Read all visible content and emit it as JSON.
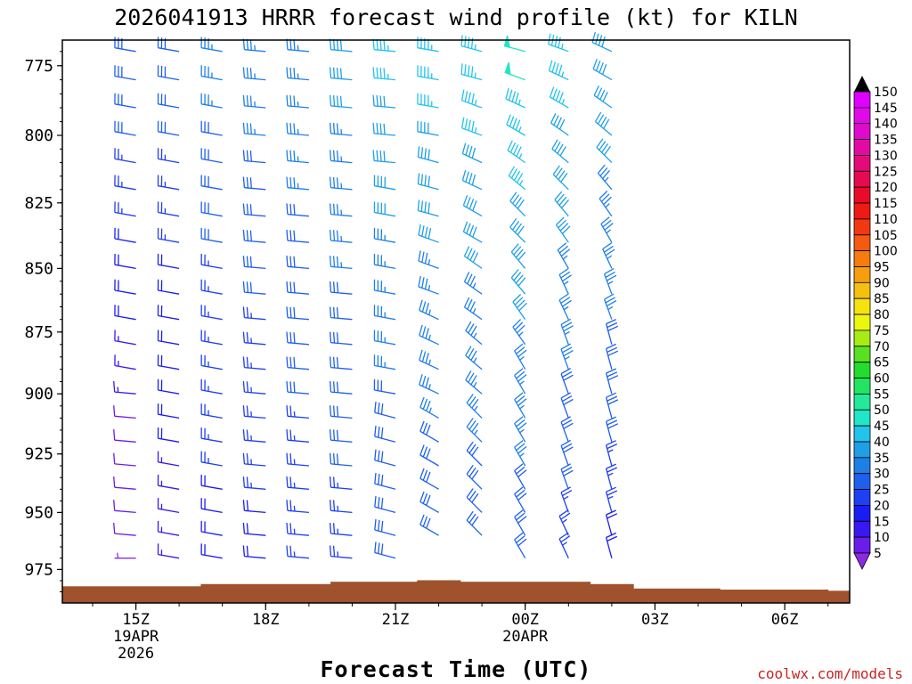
{
  "chart_data": {
    "type": "wind-barb-time-height",
    "title": "2026041913 HRRR forecast wind profile (kt) for KILN",
    "xlabel": "Forecast Time (UTC)",
    "ylabel": "",
    "credit": "coolwx.com/models",
    "y_axis": {
      "unit": "hPa",
      "ylim": [
        990,
        766
      ],
      "ticks": [
        775,
        800,
        825,
        850,
        875,
        900,
        925,
        950,
        975
      ]
    },
    "x_axis": {
      "xlim_hours": [
        13.3,
        31.5
      ],
      "ticks": [
        {
          "hour": 15,
          "label": "15Z",
          "sub1": "19APR",
          "sub2": "2026"
        },
        {
          "hour": 18,
          "label": "18Z",
          "sub1": "",
          "sub2": ""
        },
        {
          "hour": 21,
          "label": "21Z",
          "sub1": "",
          "sub2": ""
        },
        {
          "hour": 24,
          "label": "00Z",
          "sub1": "20APR",
          "sub2": ""
        },
        {
          "hour": 27,
          "label": "03Z",
          "sub1": "",
          "sub2": ""
        },
        {
          "hour": 30,
          "label": "06Z",
          "sub1": "",
          "sub2": ""
        }
      ]
    },
    "terrain": {
      "color": "#a0522d",
      "surface_pressure": [
        {
          "from": 13.3,
          "to": 16.5,
          "p": 982.5
        },
        {
          "from": 16.5,
          "to": 19.5,
          "p": 981.5
        },
        {
          "from": 19.5,
          "to": 21.5,
          "p": 980.5
        },
        {
          "from": 21.5,
          "to": 22.5,
          "p": 979.8
        },
        {
          "from": 22.5,
          "to": 25.5,
          "p": 980.5
        },
        {
          "from": 25.5,
          "to": 26.5,
          "p": 981.5
        },
        {
          "from": 26.5,
          "to": 28.5,
          "p": 983.5
        },
        {
          "from": 28.5,
          "to": 31.0,
          "p": 984.0
        },
        {
          "from": 31.0,
          "to": 31.5,
          "p": 984.5
        }
      ]
    },
    "barb_levels": [
      770,
      780,
      790,
      800,
      810,
      820,
      830,
      840,
      850,
      860,
      870,
      880,
      890,
      900,
      910,
      920,
      930,
      940,
      950,
      960,
      970
    ],
    "series": [
      {
        "hour": 15,
        "lowest_p": 972,
        "dir": [
          280,
          280,
          280,
          280,
          280,
          280,
          280,
          280,
          280,
          280,
          280,
          280,
          280,
          275,
          275,
          275,
          275,
          275,
          275,
          275,
          270
        ],
        "spd": [
          30,
          30,
          30,
          30,
          25,
          25,
          25,
          20,
          20,
          20,
          20,
          15,
          15,
          15,
          10,
          10,
          10,
          10,
          10,
          10,
          5
        ]
      },
      {
        "hour": 16,
        "lowest_p": 971,
        "dir": [
          280,
          280,
          280,
          280,
          280,
          280,
          280,
          280,
          280,
          280,
          280,
          280,
          280,
          280,
          280,
          280,
          280,
          280,
          280,
          280,
          280
        ],
        "spd": [
          30,
          30,
          30,
          30,
          25,
          25,
          25,
          25,
          20,
          20,
          20,
          20,
          20,
          20,
          20,
          20,
          15,
          15,
          15,
          15,
          15
        ]
      },
      {
        "hour": 17,
        "lowest_p": 971,
        "dir": [
          280,
          280,
          280,
          280,
          280,
          280,
          280,
          280,
          280,
          280,
          280,
          280,
          280,
          280,
          280,
          280,
          280,
          280,
          280,
          280,
          280
        ],
        "spd": [
          35,
          35,
          35,
          30,
          30,
          30,
          30,
          30,
          25,
          25,
          25,
          25,
          25,
          25,
          25,
          25,
          25,
          20,
          20,
          20,
          20
        ]
      },
      {
        "hour": 18,
        "lowest_p": 970,
        "dir": [
          275,
          275,
          275,
          275,
          275,
          275,
          275,
          275,
          275,
          275,
          275,
          275,
          275,
          275,
          275,
          275,
          275,
          275,
          275,
          275,
          275
        ],
        "spd": [
          35,
          35,
          35,
          35,
          30,
          30,
          30,
          30,
          30,
          30,
          25,
          25,
          25,
          25,
          25,
          25,
          25,
          25,
          20,
          20,
          20
        ]
      },
      {
        "hour": 19,
        "lowest_p": 970,
        "dir": [
          275,
          275,
          275,
          275,
          275,
          275,
          275,
          275,
          275,
          275,
          275,
          275,
          275,
          275,
          275,
          275,
          275,
          275,
          275,
          275,
          275
        ],
        "spd": [
          35,
          35,
          35,
          35,
          35,
          35,
          30,
          30,
          30,
          30,
          30,
          30,
          30,
          30,
          25,
          25,
          25,
          25,
          25,
          25,
          25
        ]
      },
      {
        "hour": 20,
        "lowest_p": 970,
        "dir": [
          275,
          275,
          275,
          275,
          275,
          275,
          275,
          275,
          275,
          275,
          275,
          275,
          275,
          275,
          275,
          275,
          275,
          275,
          275,
          275,
          275
        ],
        "spd": [
          40,
          40,
          40,
          35,
          35,
          35,
          35,
          35,
          35,
          30,
          30,
          30,
          30,
          30,
          30,
          30,
          30,
          25,
          25,
          25,
          25
        ]
      },
      {
        "hour": 21,
        "lowest_p": 970,
        "dir": [
          275,
          275,
          275,
          275,
          275,
          280,
          280,
          280,
          280,
          280,
          280,
          280,
          280,
          280,
          285,
          285,
          285,
          285,
          285,
          285,
          285
        ],
        "spd": [
          45,
          45,
          40,
          40,
          40,
          40,
          40,
          35,
          35,
          35,
          35,
          35,
          35,
          30,
          30,
          30,
          30,
          30,
          30,
          30,
          30
        ]
      },
      {
        "hour": 22,
        "lowest_p": 969,
        "dir": [
          280,
          280,
          280,
          280,
          285,
          285,
          285,
          290,
          290,
          290,
          295,
          295,
          295,
          295,
          300,
          300,
          300,
          300,
          300,
          300,
          300
        ],
        "spd": [
          45,
          45,
          45,
          40,
          40,
          40,
          40,
          40,
          35,
          35,
          35,
          35,
          35,
          35,
          35,
          30,
          30,
          30,
          30,
          30,
          30
        ]
      },
      {
        "hour": 23,
        "lowest_p": 969,
        "dir": [
          285,
          285,
          290,
          290,
          295,
          295,
          300,
          300,
          305,
          305,
          305,
          310,
          310,
          310,
          315,
          315,
          315,
          315,
          315,
          315,
          315
        ],
        "spd": [
          45,
          45,
          45,
          45,
          40,
          40,
          40,
          40,
          40,
          35,
          35,
          35,
          35,
          35,
          35,
          35,
          30,
          30,
          30,
          30,
          30
        ]
      },
      {
        "hour": 24,
        "lowest_p": 970,
        "dir": [
          285,
          290,
          295,
          300,
          305,
          310,
          315,
          315,
          320,
          320,
          325,
          325,
          330,
          330,
          330,
          330,
          330,
          330,
          330,
          330,
          330
        ],
        "spd": [
          50,
          50,
          45,
          45,
          45,
          45,
          40,
          40,
          40,
          40,
          40,
          35,
          35,
          35,
          35,
          35,
          35,
          30,
          30,
          30,
          30
        ]
      },
      {
        "hour": 25,
        "lowest_p": 975,
        "dir": [
          290,
          295,
          300,
          305,
          310,
          315,
          320,
          325,
          330,
          335,
          335,
          340,
          340,
          340,
          340,
          340,
          340,
          340,
          340,
          335,
          335
        ],
        "spd": [
          45,
          45,
          45,
          40,
          40,
          40,
          40,
          40,
          35,
          35,
          35,
          35,
          35,
          30,
          30,
          30,
          30,
          30,
          25,
          25,
          25
        ]
      },
      {
        "hour": 26,
        "lowest_p": 976,
        "dir": [
          295,
          300,
          305,
          310,
          315,
          320,
          325,
          330,
          335,
          340,
          340,
          345,
          345,
          345,
          345,
          345,
          345,
          345,
          345,
          345,
          345
        ],
        "spd": [
          40,
          40,
          40,
          40,
          40,
          35,
          35,
          35,
          35,
          35,
          35,
          30,
          30,
          30,
          30,
          30,
          25,
          25,
          25,
          20,
          20
        ]
      }
    ],
    "colorbar": {
      "labels": [
        "5",
        "10",
        "15",
        "20",
        "25",
        "30",
        "35",
        "40",
        "45",
        "50",
        "55",
        "60",
        "65",
        "70",
        "75",
        "80",
        "85",
        "90",
        "95",
        "100",
        "105",
        "110",
        "115",
        "120",
        "125",
        "130",
        "135",
        "140",
        "145",
        "150"
      ],
      "colors": [
        "#8a2be2",
        "#6a1de8",
        "#3a18f0",
        "#1a1cf4",
        "#1e3ff2",
        "#1e5fee",
        "#1e7fe8",
        "#1e9fe6",
        "#22c4ec",
        "#22e6c8",
        "#22ea9a",
        "#22e662",
        "#22dc2e",
        "#5ae022",
        "#a8ec16",
        "#ecf60e",
        "#f6e210",
        "#f6c010",
        "#f69e10",
        "#f67c10",
        "#f45a10",
        "#f23810",
        "#ee1a14",
        "#ea0a2a",
        "#e60a52",
        "#e40a7a",
        "#e20aa4",
        "#e00ace",
        "#e00ae8",
        "#e000ff"
      ],
      "top_color": "#000000"
    }
  }
}
